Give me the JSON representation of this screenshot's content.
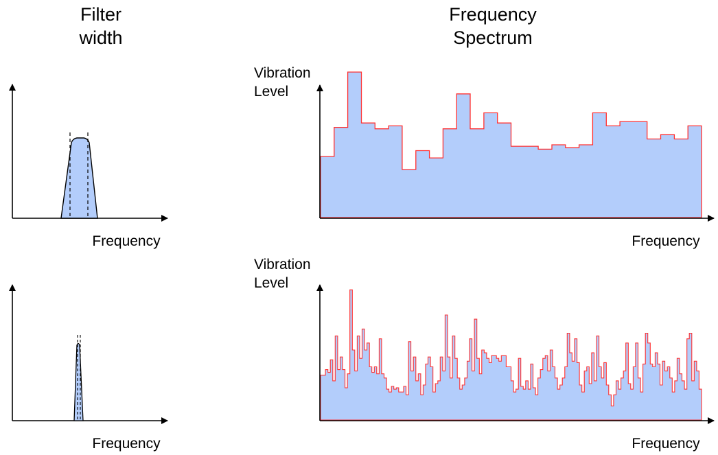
{
  "headers": {
    "filter_width": [
      "Filter",
      "width"
    ],
    "frequency_spectrum": [
      "Frequency",
      "Spectrum"
    ]
  },
  "colors": {
    "fill": "#b3cdfb",
    "stroke": "#ff3030",
    "axis": "#000000"
  },
  "filter_panels": [
    {
      "name": "wide-filter",
      "xlabel": "Frequency",
      "description": "wide bandpass filter shape"
    },
    {
      "name": "narrow-filter",
      "xlabel": "Frequency",
      "description": "narrow bandpass filter shape"
    }
  ],
  "spectrum_panels": [
    {
      "name": "coarse-spectrum",
      "ylabel": [
        "Vibration",
        "Level"
      ],
      "xlabel": "Frequency"
    },
    {
      "name": "fine-spectrum",
      "ylabel": [
        "Vibration",
        "Level"
      ],
      "xlabel": "Frequency"
    }
  ],
  "chart_data": [
    {
      "type": "area",
      "title": "",
      "xlabel": "Frequency",
      "ylabel": "Vibration Level",
      "step": true,
      "ylim": [
        0,
        100
      ],
      "values": [
        42,
        62,
        100,
        65,
        61,
        63,
        33,
        46,
        41,
        61,
        85,
        61,
        72,
        65,
        49,
        49,
        47,
        50,
        48,
        50,
        72,
        63,
        66,
        66,
        54,
        57,
        54,
        63
      ]
    },
    {
      "type": "area",
      "title": "",
      "xlabel": "Frequency",
      "ylabel": "Vibration Level",
      "step": true,
      "ylim": [
        0,
        100
      ],
      "values": [
        32,
        32,
        36,
        34,
        43,
        28,
        60,
        36,
        45,
        36,
        23,
        33,
        93,
        50,
        35,
        60,
        44,
        65,
        50,
        55,
        38,
        34,
        38,
        33,
        58,
        33,
        30,
        22,
        20,
        24,
        22,
        23,
        20,
        20,
        24,
        18,
        56,
        35,
        45,
        28,
        33,
        18,
        25,
        40,
        45,
        38,
        20,
        26,
        28,
        45,
        35,
        75,
        45,
        30,
        60,
        44,
        30,
        22,
        25,
        30,
        42,
        58,
        35,
        72,
        44,
        33,
        50,
        48,
        44,
        41,
        46,
        46,
        44,
        42,
        46,
        46,
        38,
        38,
        28,
        20,
        22,
        44,
        24,
        22,
        28,
        22,
        40,
        23,
        18,
        30,
        36,
        44,
        46,
        35,
        50,
        38,
        30,
        22,
        25,
        30,
        38,
        62,
        48,
        42,
        58,
        41,
        25,
        20,
        35,
        38,
        26,
        48,
        28,
        60,
        38,
        30,
        41,
        25,
        18,
        10,
        18,
        28,
        22,
        30,
        35,
        55,
        26,
        22,
        38,
        55,
        30,
        20,
        40,
        62,
        55,
        40,
        38,
        48,
        40,
        25,
        42,
        35,
        38,
        30,
        20,
        28,
        44,
        33,
        28,
        22,
        58,
        62,
        28,
        42,
        35,
        22
      ]
    }
  ]
}
